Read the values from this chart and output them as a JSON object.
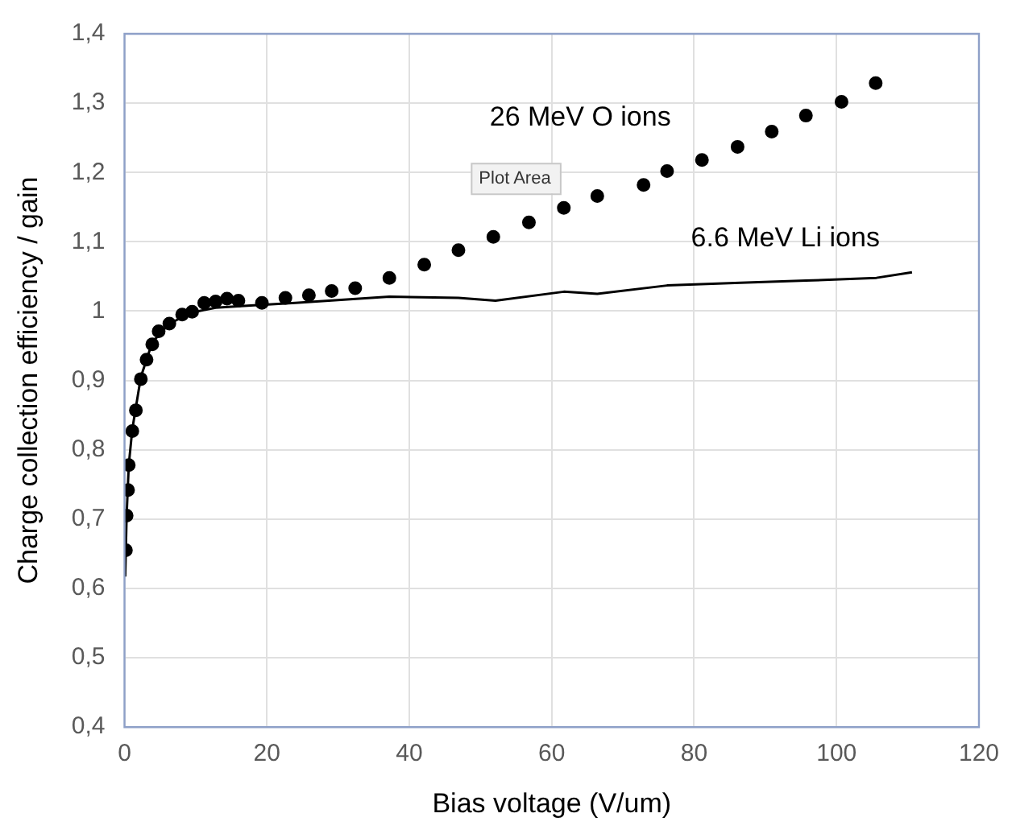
{
  "chart_data": {
    "type": "scatter",
    "xlabel": "Bias voltage (V/um)",
    "ylabel": "Charge collection efficiency / gain",
    "annotations": [
      "Plot Area"
    ],
    "xlim": [
      0,
      120
    ],
    "xticks": [
      0,
      20,
      40,
      60,
      80,
      100,
      120
    ],
    "ylim": [
      0.4,
      1.4
    ],
    "yticks": [
      {
        "value": 0.4,
        "label": "0,4"
      },
      {
        "value": 0.5,
        "label": "0,5"
      },
      {
        "value": 0.6,
        "label": "0,6"
      },
      {
        "value": 0.7,
        "label": "0,7"
      },
      {
        "value": 0.8,
        "label": "0,8"
      },
      {
        "value": 0.9,
        "label": "0,9"
      },
      {
        "value": 1,
        "label": "1"
      },
      {
        "value": 1.1,
        "label": "1,1"
      },
      {
        "value": 1.2,
        "label": "1,2"
      },
      {
        "value": 1.3,
        "label": "1,3"
      },
      {
        "value": 1.4,
        "label": "1,4"
      }
    ],
    "grid": true,
    "legend": false,
    "series": [
      {
        "name": "26 MeV O ions",
        "type": "scatter",
        "marker": "circle",
        "color": "#000000",
        "x": [
          0.2,
          0.3,
          0.5,
          0.6,
          1.1,
          1.6,
          2.3,
          3.1,
          3.9,
          4.8,
          6.3,
          8.1,
          9.5,
          11.2,
          12.8,
          14.4,
          16,
          19.3,
          22.6,
          25.9,
          29.1,
          32.4,
          37.2,
          42.1,
          46.9,
          51.8,
          56.8,
          61.7,
          66.4,
          72.9,
          76.2,
          81.1,
          86.1,
          90.9,
          95.7,
          100.7,
          105.5
        ],
        "values": [
          0.655,
          0.705,
          0.742,
          0.778,
          0.827,
          0.857,
          0.902,
          0.93,
          0.952,
          0.971,
          0.982,
          0.995,
          0.999,
          1.012,
          1.014,
          1.018,
          1.015,
          1.012,
          1.019,
          1.023,
          1.029,
          1.033,
          1.048,
          1.067,
          1.088,
          1.107,
          1.128,
          1.149,
          1.166,
          1.182,
          1.202,
          1.218,
          1.237,
          1.259,
          1.282,
          1.302,
          1.329
        ]
      },
      {
        "name": "6.6 MeV Li ions",
        "type": "line",
        "marker": "none",
        "line_style": "solid",
        "color": "#000000",
        "x": [
          0.1,
          0.3,
          0.6,
          1.1,
          2.3,
          3.9,
          6.3,
          9.5,
          12.8,
          17.7,
          24,
          37.2,
          46.9,
          52.1,
          61.7,
          66.4,
          76.2,
          86.5,
          95.7,
          105.6,
          110.6
        ],
        "values": [
          0.617,
          0.705,
          0.778,
          0.83,
          0.905,
          0.955,
          0.982,
          0.998,
          1.005,
          1.008,
          1.012,
          1.021,
          1.019,
          1.015,
          1.028,
          1.025,
          1.037,
          1.041,
          1.044,
          1.048,
          1.056
        ]
      }
    ]
  }
}
